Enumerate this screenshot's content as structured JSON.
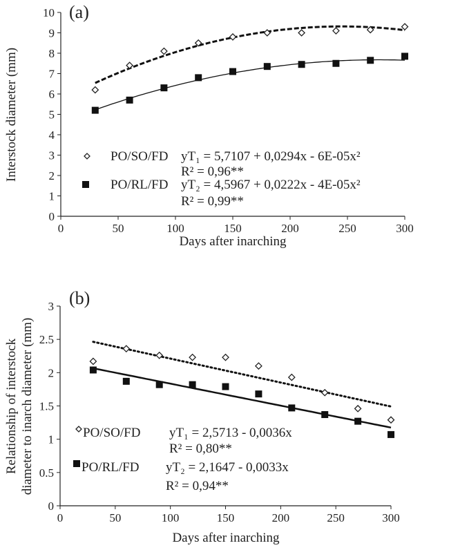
{
  "chart_data": [
    {
      "type": "scatter",
      "panel_label": "(a)",
      "xlabel": "Days after inarching",
      "ylabel": "Interstock diameter (mm)",
      "xlim": [
        0,
        300
      ],
      "ylim": [
        0,
        10
      ],
      "xticks": [
        0,
        50,
        100,
        150,
        200,
        250,
        300
      ],
      "yticks": [
        0,
        1,
        2,
        3,
        4,
        5,
        6,
        7,
        8,
        9,
        10
      ],
      "grid": false,
      "legend_placement": "bottom-left inside",
      "x": [
        30,
        60,
        90,
        120,
        150,
        180,
        210,
        240,
        270,
        300
      ],
      "series": [
        {
          "name": "PO/SO/FD",
          "marker": "open-diamond",
          "values": [
            6.2,
            7.4,
            8.1,
            8.5,
            8.8,
            9.0,
            9.0,
            9.1,
            9.15,
            9.3
          ],
          "trend": {
            "kind": "quadratic",
            "coef": [
              5.7107,
              0.0294,
              -6e-05
            ],
            "style": "dashed"
          },
          "equation": "yT₁ = 5,7107 + 0,0294x - 6E-05x²",
          "r2": "R² = 0,96**"
        },
        {
          "name": "PO/RL/FD",
          "marker": "filled-square",
          "values": [
            5.2,
            5.7,
            6.3,
            6.8,
            7.1,
            7.35,
            7.45,
            7.5,
            7.65,
            7.85
          ],
          "trend": {
            "kind": "quadratic",
            "coef": [
              4.5967,
              0.0222,
              -4e-05
            ],
            "style": "solid"
          },
          "equation": "yT₂ = 4,5967 + 0,0222x - 4E-05x²",
          "r2": "R² = 0,99**"
        }
      ]
    },
    {
      "type": "scatter",
      "panel_label": "(b)",
      "xlabel": "Days after inarching",
      "ylabel": [
        "Relationship of interstock",
        "diameter to inarch diameter (mm)"
      ],
      "xlim": [
        0,
        300
      ],
      "ylim": [
        0,
        3
      ],
      "xticks": [
        0,
        50,
        100,
        150,
        200,
        250,
        300
      ],
      "yticks": [
        0,
        0.5,
        1,
        1.5,
        2,
        2.5,
        3
      ],
      "ytick_labels": [
        "0",
        "0.5",
        "1",
        "1.5",
        "2",
        "2.5",
        "3"
      ],
      "grid": false,
      "legend_placement": "bottom-left inside",
      "x": [
        30,
        60,
        90,
        120,
        150,
        180,
        210,
        240,
        270,
        300
      ],
      "series": [
        {
          "name": "PO/SO/FD",
          "marker": "open-diamond",
          "values": [
            2.17,
            2.36,
            2.26,
            2.23,
            2.23,
            2.1,
            1.93,
            1.7,
            1.46,
            1.29
          ],
          "trend": {
            "kind": "linear",
            "coef": [
              2.5713,
              -0.0036
            ],
            "style": "dotted"
          },
          "equation": "yT₁ = 2,5713 - 0,0036x",
          "r2": "R² = 0,80**"
        },
        {
          "name": "PO/RL/FD",
          "marker": "filled-square",
          "values": [
            2.04,
            1.87,
            1.82,
            1.82,
            1.79,
            1.68,
            1.47,
            1.37,
            1.27,
            1.07
          ],
          "trend": {
            "kind": "linear",
            "coef": [
              2.1647,
              -0.0033
            ],
            "style": "solid"
          },
          "equation": "yT₂ = 2,1647 - 0,0033x",
          "r2": "R² = 0,94**"
        }
      ]
    }
  ]
}
